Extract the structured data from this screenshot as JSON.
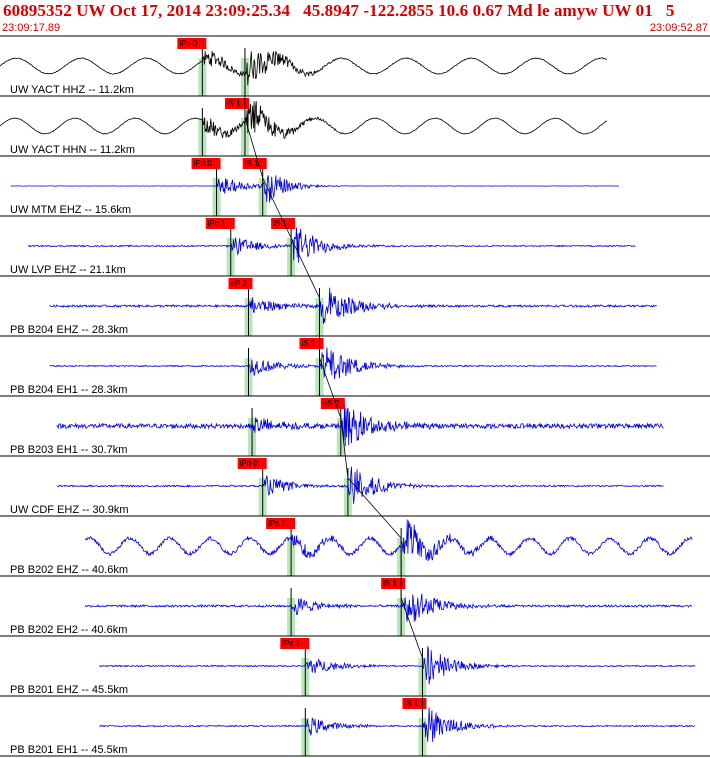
{
  "header": {
    "title": "60895352 UW Oct 17, 2014 23:09:25.34   45.8947 -122.2855 10.6 0.67 Md le amyw UW 01   5",
    "time_start": "23:09:17.89",
    "time_end": "23:09:52.87"
  },
  "colors": {
    "header_text": "#d40000",
    "accel_trace": "#000000",
    "bb_trace": "#0000e0",
    "pick_box": "#ff0000",
    "pick_window": "#b8e6b8",
    "tick": "#ff0000",
    "moveout_curve": "#000000"
  },
  "chart_data": {
    "type": "seismogram-record",
    "title": "",
    "x_range": [
      "23:09:17.89",
      "23:09:52.87"
    ],
    "traces": [
      {
        "label": "UW YACT HHZ -- 11.2km",
        "color": "black",
        "start_frac": 0.0,
        "end_frac": 0.855,
        "p_frac": 0.285,
        "s_frac": 0.345,
        "p_label": "iPc 0",
        "s_label": null,
        "bg_period": 65,
        "noise": 0.08,
        "peak": 1.0,
        "coda": 0.9
      },
      {
        "label": "UW YACT HHN -- 11.2km",
        "color": "black",
        "start_frac": 0.0,
        "end_frac": 0.855,
        "p_frac": 0.285,
        "s_frac": 0.345,
        "p_label": null,
        "s_label": "iS 1",
        "bg_period": 60,
        "noise": 0.06,
        "peak": 1.0,
        "coda": 0.85
      },
      {
        "label": "UW MTM EHZ -- 15.6km",
        "color": "blue",
        "start_frac": 0.015,
        "end_frac": 0.872,
        "p_frac": 0.305,
        "s_frac": 0.37,
        "p_label": "iPd 0",
        "s_label": "iS 1",
        "bg_period": 0,
        "noise": 0.03,
        "peak": 1.0,
        "coda": 0.6
      },
      {
        "label": "UW LVP EHZ -- 21.1km",
        "color": "blue",
        "start_frac": 0.04,
        "end_frac": 0.895,
        "p_frac": 0.325,
        "s_frac": 0.41,
        "p_label": "iPc 1",
        "s_label": "iS 1",
        "bg_period": 0,
        "noise": 0.12,
        "peak": 1.0,
        "coda": 0.8
      },
      {
        "label": "PB B204 EHZ -- 28.3km",
        "color": "blue",
        "start_frac": 0.07,
        "end_frac": 0.925,
        "p_frac": 0.35,
        "s_frac": 0.45,
        "p_label": "eP 2",
        "s_label": null,
        "bg_period": 0,
        "noise": 0.2,
        "peak": 1.0,
        "coda": 0.9
      },
      {
        "label": "PB B204 EH1 -- 28.3km",
        "color": "blue",
        "start_frac": 0.07,
        "end_frac": 0.925,
        "p_frac": 0.35,
        "s_frac": 0.45,
        "p_label": null,
        "s_label": "iS 1",
        "bg_period": 0,
        "noise": 0.12,
        "peak": 1.0,
        "coda": 0.9
      },
      {
        "label": "PB B203 EH1 -- 30.7km",
        "color": "blue",
        "start_frac": 0.08,
        "end_frac": 0.935,
        "p_frac": 0.355,
        "s_frac": 0.48,
        "p_label": null,
        "s_label": "eS 2",
        "bg_period": 0,
        "noise": 0.45,
        "peak": 1.0,
        "coda": 0.95
      },
      {
        "label": "UW CDF EHZ -- 30.9km",
        "color": "blue",
        "start_frac": 0.08,
        "end_frac": 0.935,
        "p_frac": 0.37,
        "s_frac": 0.49,
        "p_label": "iPd 0",
        "s_label": null,
        "bg_period": 0,
        "noise": 0.15,
        "peak": 1.0,
        "coda": 0.8
      },
      {
        "label": "PB B202 EHZ -- 40.6km",
        "color": "blue",
        "start_frac": 0.12,
        "end_frac": 0.975,
        "p_frac": 0.41,
        "s_frac": 0.565,
        "p_label": "iPc 1",
        "s_label": null,
        "bg_period": 40,
        "noise": 0.35,
        "peak": 1.0,
        "coda": 0.9
      },
      {
        "label": "PB B202 EH2 -- 40.6km",
        "color": "blue",
        "start_frac": 0.12,
        "end_frac": 0.975,
        "p_frac": 0.41,
        "s_frac": 0.565,
        "p_label": null,
        "s_label": "iS 1",
        "bg_period": 0,
        "noise": 0.2,
        "peak": 1.0,
        "coda": 0.9
      },
      {
        "label": "PB B201 EHZ -- 45.5km",
        "color": "blue",
        "start_frac": 0.14,
        "end_frac": 0.98,
        "p_frac": 0.43,
        "s_frac": 0.595,
        "p_label": "iPc 1",
        "s_label": null,
        "bg_period": 0,
        "noise": 0.12,
        "peak": 1.0,
        "coda": 0.8
      },
      {
        "label": "PB B201 EH1 -- 45.5km",
        "color": "blue",
        "start_frac": 0.14,
        "end_frac": 0.98,
        "p_frac": 0.43,
        "s_frac": 0.595,
        "p_label": null,
        "s_label": "iS 1",
        "bg_period": 0,
        "noise": 0.12,
        "peak": 1.0,
        "coda": 0.8
      }
    ]
  }
}
